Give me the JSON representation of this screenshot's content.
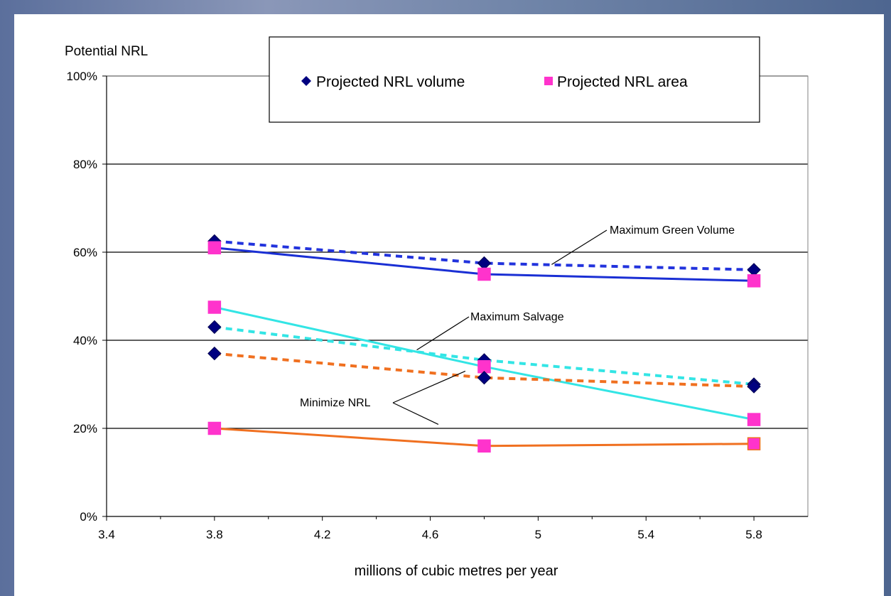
{
  "chart_data": {
    "type": "line",
    "ylabel": "Potential NRL",
    "xlabel": "millions of cubic metres per year",
    "xlim": [
      3.4,
      6.0
    ],
    "ylim": [
      0,
      100
    ],
    "x_ticks": [
      3.4,
      3.8,
      4.2,
      4.6,
      5.0,
      5.4,
      5.8
    ],
    "x_tick_labels": [
      "3.4",
      "3.8",
      "4.2",
      "4.6",
      "5",
      "5.4",
      "5.8"
    ],
    "y_ticks": [
      0,
      20,
      40,
      60,
      80,
      100
    ],
    "y_tick_labels": [
      "0%",
      "20%",
      "40%",
      "60%",
      "80%",
      "100%"
    ],
    "grid": "horizontal",
    "legend": {
      "position": "top-center",
      "entries": [
        {
          "label": "Projected NRL volume",
          "marker": "diamond",
          "color": "#000080"
        },
        {
          "label": "Projected NRL area",
          "marker": "square",
          "color": "#ff33cc"
        }
      ]
    },
    "series": [
      {
        "scenario": "Maximum Green Volume",
        "measure": "volume",
        "style": "dotted",
        "color": "#2233dd",
        "marker": "diamond",
        "x": [
          3.8,
          4.8,
          5.8
        ],
        "y": [
          62.5,
          57.5,
          56
        ]
      },
      {
        "scenario": "Maximum Green Volume",
        "measure": "area",
        "style": "solid",
        "color": "#1a2fd4",
        "marker": "square",
        "x": [
          3.8,
          4.8,
          5.8
        ],
        "y": [
          61,
          55,
          53.5
        ]
      },
      {
        "scenario": "Maximum Salvage",
        "measure": "volume",
        "style": "dotted",
        "color": "#33e5e5",
        "marker": "diamond",
        "x": [
          3.8,
          4.8,
          5.8
        ],
        "y": [
          43,
          35.5,
          30
        ]
      },
      {
        "scenario": "Maximum Salvage",
        "measure": "area",
        "style": "solid",
        "color": "#33e5e5",
        "marker": "square",
        "x": [
          3.8,
          4.8,
          5.8
        ],
        "y": [
          47.5,
          34,
          22
        ]
      },
      {
        "scenario": "Minimize NRL",
        "measure": "volume",
        "style": "dotted",
        "color": "#f07020",
        "marker": "diamond",
        "x": [
          3.8,
          4.8,
          5.8
        ],
        "y": [
          37,
          31.5,
          29.5
        ]
      },
      {
        "scenario": "Minimize NRL",
        "measure": "area",
        "style": "solid",
        "color": "#f07020",
        "marker": "square",
        "x": [
          3.8,
          4.8,
          5.8
        ],
        "y": [
          20,
          16,
          16.5
        ]
      }
    ],
    "annotations": [
      {
        "text": "Maximum Green Volume",
        "points_to": "Maximum Green Volume"
      },
      {
        "text": "Maximum Salvage",
        "points_to": "Maximum Salvage"
      },
      {
        "text": "Minimize NRL",
        "points_to": "Minimize NRL"
      }
    ]
  }
}
